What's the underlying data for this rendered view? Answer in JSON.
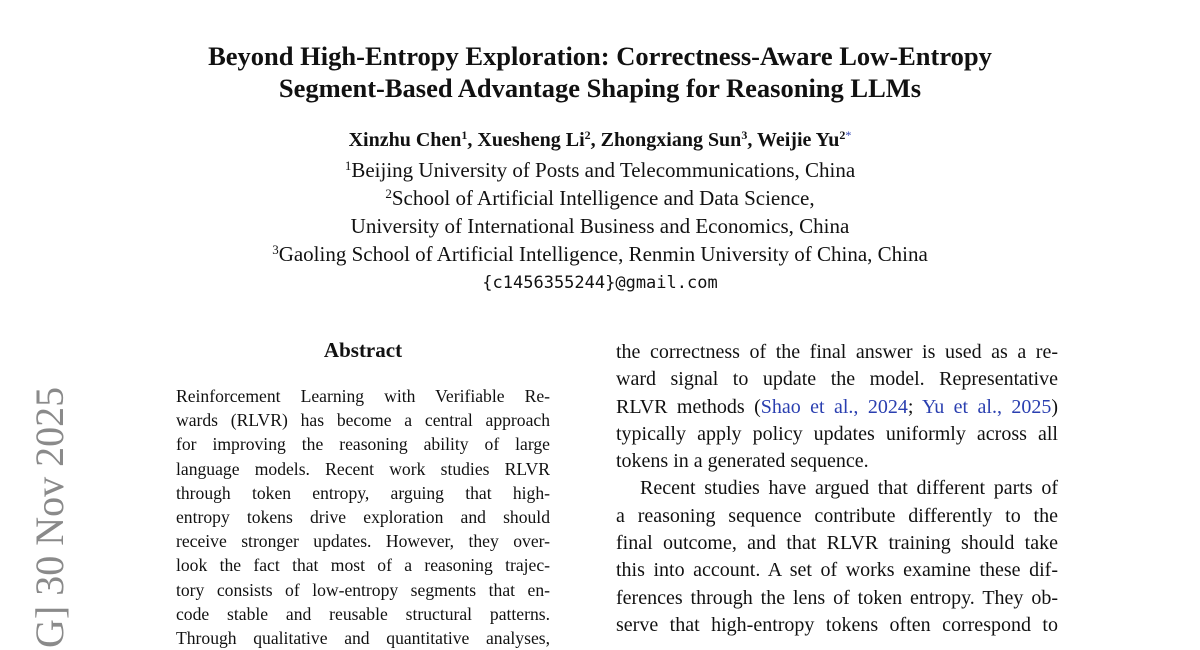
{
  "title_lines": [
    "Beyond High-Entropy Exploration: Correctness-Aware Low-Entropy",
    "Segment-Based Advantage Shaping for Reasoning LLMs"
  ],
  "authors": [
    {
      "name": "Xinzhu Chen",
      "sup": "1"
    },
    {
      "name": "Xuesheng Li",
      "sup": "2"
    },
    {
      "name": "Zhongxiang Sun",
      "sup": "3"
    },
    {
      "name": "Weijie Yu",
      "sup": "2",
      "mark": "*"
    }
  ],
  "affiliations": [
    {
      "sup": "1",
      "text": "Beijing University of Posts and Telecommunications, China"
    },
    {
      "sup": "2",
      "text": "School of Artificial Intelligence and Data Science,"
    },
    {
      "sup": "",
      "text": "University of International Business and Economics, China"
    },
    {
      "sup": "3",
      "text": "Gaoling School of Artificial Intelligence, Renmin University of China, China"
    }
  ],
  "email": "{c1456355244}@gmail.com",
  "abstract_heading": "Abstract",
  "abstract_lines": [
    "Reinforcement Learning with Verifiable Re-",
    "wards (RLVR) has become a central approach",
    "for improving the reasoning ability of large",
    "language models. Recent work studies RLVR",
    "through token entropy, arguing that high-",
    "entropy tokens drive exploration and should",
    "receive stronger updates. However, they over-",
    "look the fact that most of a reasoning trajec-",
    "tory consists of low-entropy segments that en-",
    "code stable and reusable structural patterns.",
    "Through qualitative and quantitative analyses,"
  ],
  "right_column": {
    "line1": "the correctness of the final answer is used as a re-",
    "line2": "ward signal to update the model.  Representative",
    "line3_pre": "RLVR methods (",
    "cite1": "Shao et al., 2024",
    "cite_sep": "; ",
    "cite2": "Yu et al., 2025",
    "line3_post": ")",
    "line4": "typically apply policy updates uniformly across all",
    "line5": "tokens in a generated sequence.",
    "para2": [
      "Recent studies have argued that different parts of",
      "a reasoning sequence contribute differently to the",
      "final outcome, and that RLVR training should take",
      "this into account. A set of works examine these dif-",
      "ferences through the lens of token entropy. They ob-",
      "serve that high-entropy tokens often correspond to"
    ]
  },
  "side_stamp": "G]  30 Nov 2025",
  "colors": {
    "citation": "#2a3fb0",
    "stamp": "#8a8a8a"
  }
}
